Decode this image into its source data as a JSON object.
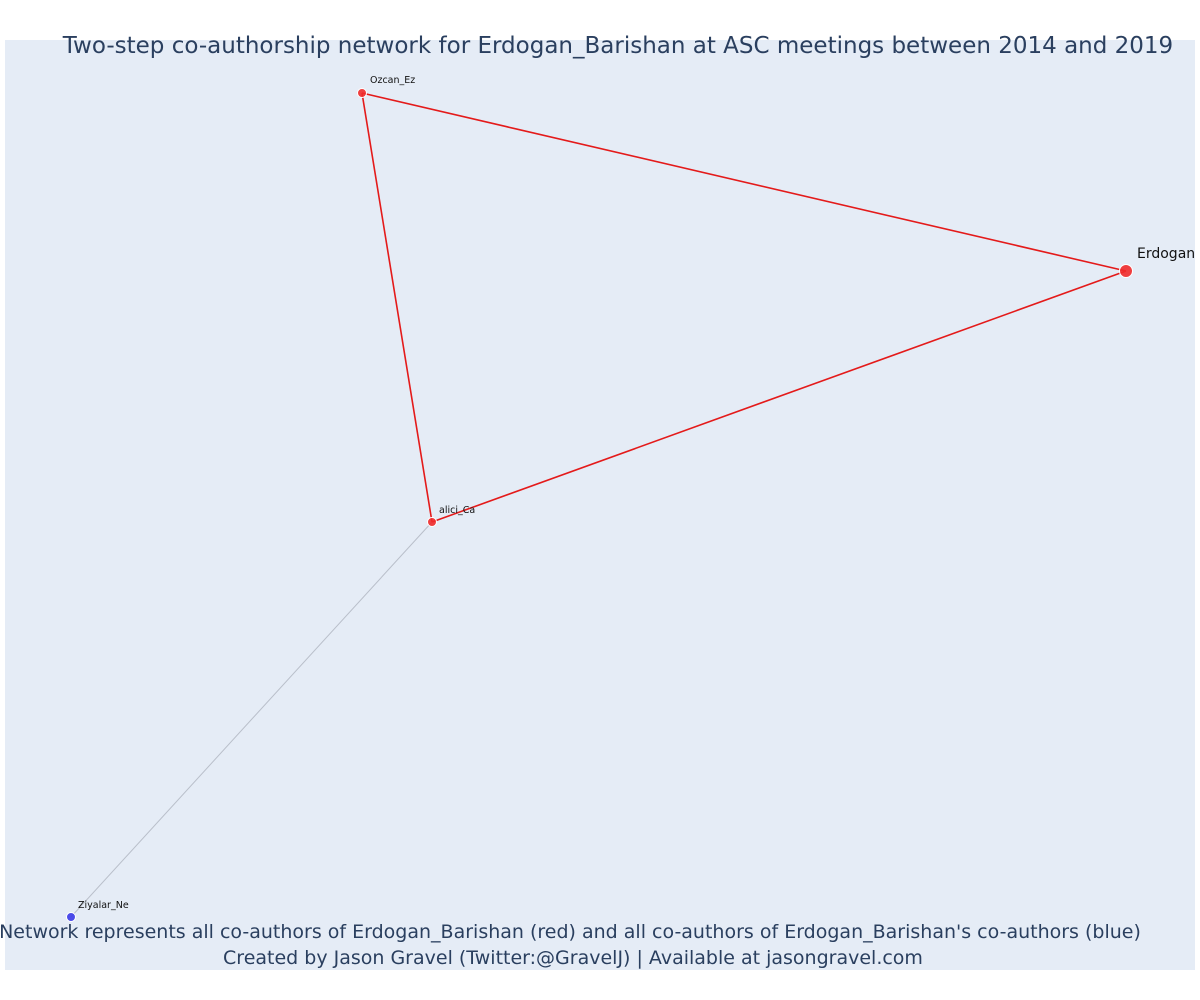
{
  "figure": {
    "title": "Two-step co-authorship network for Erdogan_Barishan at ASC meetings between 2014 and 2019",
    "caption_line1": "Network represents all co-authors of Erdogan_Barishan (red) and all co-authors of Erdogan_Barishan's co-authors (blue)",
    "caption_line2": "Created by Jason Gravel (Twitter:@GravelJ) | Available at jasongravel.com"
  },
  "colors": {
    "plot_background": "#e5ecf6",
    "text": "#2a3f5f",
    "coauthor_node": "#ef2b2b",
    "second_step_node": "#3b3be8",
    "coauthor_edge": "#e41a1a",
    "second_step_edge": "#b9bfca"
  },
  "chart_data": {
    "type": "network",
    "nodes": [
      {
        "id": "Erdogan_Barishan",
        "label": "Erdogan",
        "group": "focal"
      },
      {
        "id": "Ozcan_Ez",
        "label": "Ozcan_Ez",
        "group": "coauthor"
      },
      {
        "id": "alici_Ca",
        "label": "alici_Ca",
        "group": "coauthor"
      },
      {
        "id": "Ziyalar_Ne",
        "label": "Ziyalar_Ne",
        "group": "second_step"
      }
    ],
    "edges": [
      {
        "source": "Ozcan_Ez",
        "target": "Erdogan_Barishan",
        "type": "coauthor"
      },
      {
        "source": "Ozcan_Ez",
        "target": "alici_Ca",
        "type": "coauthor"
      },
      {
        "source": "alici_Ca",
        "target": "Erdogan_Barishan",
        "type": "coauthor"
      },
      {
        "source": "alici_Ca",
        "target": "Ziyalar_Ne",
        "type": "second_step"
      }
    ]
  }
}
